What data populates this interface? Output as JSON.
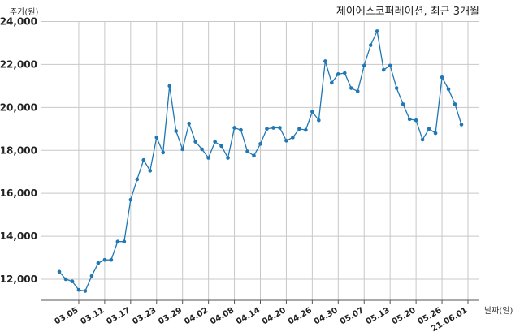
{
  "chart_data": {
    "type": "line",
    "title": "제이에스코퍼레이션, 최근 3개월",
    "ylabel": "주가(원)",
    "xlabel": "날짜(일)",
    "ylim": [
      11000,
      24000
    ],
    "yticks": [
      12000,
      14000,
      16000,
      18000,
      20000,
      22000,
      24000
    ],
    "ytick_labels": [
      "12,000",
      "14,000",
      "16,000",
      "18,000",
      "20,000",
      "22,000",
      "24,000"
    ],
    "xtick_labels": [
      "03.05",
      "03.11",
      "03.17",
      "03.23",
      "03.29",
      "04.02",
      "04.08",
      "04.14",
      "04.20",
      "04.26",
      "04.30",
      "05.07",
      "05.13",
      "05.20",
      "05.26",
      "21.06.01"
    ],
    "xtick_index": [
      3,
      7,
      11,
      15,
      19,
      23,
      27,
      31,
      35,
      39,
      43,
      47,
      51,
      55,
      59,
      63
    ],
    "grid": true,
    "series": [
      {
        "color": "#1f77b4",
        "values": [
          12350,
          12000,
          11900,
          11500,
          11450,
          12150,
          12750,
          12900,
          12900,
          13750,
          13750,
          15700,
          16650,
          17550,
          17050,
          18600,
          17900,
          21000,
          18900,
          18050,
          19250,
          18400,
          18050,
          17650,
          18400,
          18200,
          17650,
          19050,
          18950,
          17950,
          17750,
          18300,
          19000,
          19050,
          19050,
          18450,
          18600,
          19000,
          18950,
          19800,
          19400,
          22150,
          21150,
          21550,
          21600,
          20900,
          20750,
          21950,
          22900,
          23550,
          21750,
          21950,
          20900,
          20150,
          19450,
          19400,
          18500,
          19000,
          18800,
          21400,
          20850,
          20150,
          19200
        ]
      }
    ]
  }
}
